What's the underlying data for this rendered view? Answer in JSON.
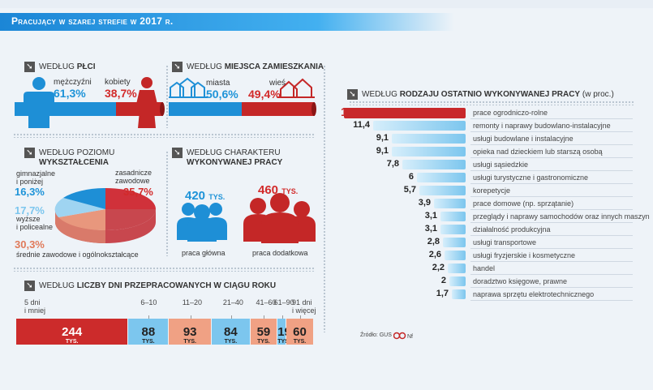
{
  "title": "Pracujący w szarej strefie w 2017 r.",
  "gender": {
    "heading_prefix": "WEDŁUG",
    "heading_bold": "PŁCI",
    "male_label": "mężczyźni",
    "male_value": "61,3%",
    "female_label": "kobiety",
    "female_value": "38,7%"
  },
  "residence": {
    "heading_prefix": "WEDŁUG",
    "heading_bold": "MIEJSCA ZAMIESZKANIA",
    "city_label": "miasta",
    "city_value": "50,6%",
    "village_label": "wieś",
    "village_value": "49,4%"
  },
  "education": {
    "heading_line1": "WEDŁUG POZIOMU",
    "heading_line2": "WYKSZTAŁCENIA",
    "gym_label_1": "gimnazjalne",
    "gym_label_2": "i poniżej",
    "gym_value": "16,3%",
    "voc_label_1": "zasadnicze",
    "voc_label_2": "zawodowe",
    "voc_value": "35,7%",
    "higher_value": "17,7%",
    "higher_label_1": "wyższe",
    "higher_label_2": "i policealne",
    "sec_value": "30,3%",
    "sec_label": "średnie zawodowe i ogólnokształcące"
  },
  "work_type": {
    "heading_line1": "WEDŁUG CHARAKTERU",
    "heading_line2": "WYKONYWANEJ PRACY",
    "main_value": "420",
    "main_unit": "TYS.",
    "main_label": "praca główna",
    "extra_value": "460",
    "extra_unit": "TYS.",
    "extra_label": "praca dodatkowa"
  },
  "days": {
    "heading_prefix": "WEDŁUG",
    "heading_bold": "LICZBY DNI PRZEPRACOWANYCH W CIĄGU ROKU",
    "unit": "TYS.",
    "colors": [
      "#cc2b2b",
      "#7cc6ee",
      "#f0a184",
      "#7cc6ee",
      "#f0a184",
      "#7cc6ee",
      "#f0a184"
    ],
    "segments": [
      {
        "label_1": "5 dni",
        "label_2": "i mniej",
        "value": "244"
      },
      {
        "label_1": "6–10",
        "label_2": "",
        "value": "88"
      },
      {
        "label_1": "11–20",
        "label_2": "",
        "value": "93"
      },
      {
        "label_1": "21–40",
        "label_2": "",
        "value": "84"
      },
      {
        "label_1": "41–60",
        "label_2": "",
        "value": "59"
      },
      {
        "label_1": "61–90",
        "label_2": "",
        "value": "19"
      },
      {
        "label_1": "91 dni",
        "label_2": "i więcej",
        "value": "60"
      }
    ]
  },
  "chart_data": {
    "type": "bar",
    "heading_prefix": "WEDŁUG",
    "heading_bold": "RODZAJU OSTATNIO WYKONYWANEJ PRACY",
    "heading_unit": "(w proc.)",
    "top_color": "#c8282a",
    "bar_color": "#7cc6ee",
    "categories": [
      "prace ogrodniczo-rolne",
      "remonty i naprawy budowlano-instalacyjne",
      "usługi budowlane i instalacyjne",
      "opieka nad dzieckiem lub starszą osobą",
      "usługi sąsiedzkie",
      "usługi turystyczne i gastronomiczne",
      "korepetycje",
      "prace domowe  (np. sprzątanie)",
      "przeglądy i naprawy samochodów oraz innych maszyn",
      "działalność produkcyjna",
      "usługi transportowe",
      "usługi fryzjerskie i kosmetyczne",
      "handel",
      "doradztwo księgowe, prawne",
      "naprawa sprzętu elektrotechnicznego"
    ],
    "values": [
      15,
      11.4,
      9.1,
      9.1,
      7.8,
      6,
      5.7,
      3.9,
      3.1,
      3.1,
      2.8,
      2.6,
      2.2,
      2,
      1.7
    ],
    "value_labels": [
      "15",
      "11,4",
      "9,1",
      "9,1",
      "7,8",
      "6",
      "5,7",
      "3,9",
      "3,1",
      "3,1",
      "2,8",
      "2,6",
      "2,2",
      "2",
      "1,7"
    ]
  },
  "source": "Źródło: GUS"
}
